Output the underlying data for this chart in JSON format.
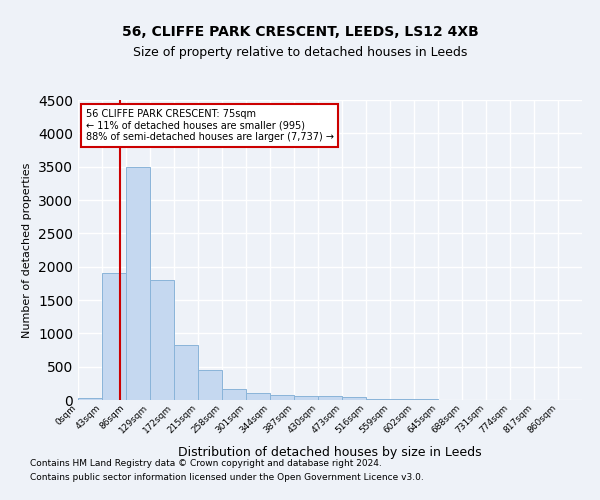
{
  "title1": "56, CLIFFE PARK CRESCENT, LEEDS, LS12 4XB",
  "title2": "Size of property relative to detached houses in Leeds",
  "xlabel": "Distribution of detached houses by size in Leeds",
  "ylabel": "Number of detached properties",
  "bin_labels": [
    "0sqm",
    "43sqm",
    "86sqm",
    "129sqm",
    "172sqm",
    "215sqm",
    "258sqm",
    "301sqm",
    "344sqm",
    "387sqm",
    "430sqm",
    "473sqm",
    "516sqm",
    "559sqm",
    "602sqm",
    "645sqm",
    "688sqm",
    "731sqm",
    "774sqm",
    "817sqm",
    "860sqm"
  ],
  "bar_heights": [
    30,
    1900,
    3500,
    1800,
    830,
    450,
    160,
    100,
    75,
    60,
    55,
    50,
    20,
    10,
    8,
    5,
    4,
    3,
    2,
    1,
    1
  ],
  "bar_color": "#c5d8f0",
  "bar_edge_color": "#8ab4d9",
  "ylim": [
    0,
    4500
  ],
  "yticks": [
    0,
    500,
    1000,
    1500,
    2000,
    2500,
    3000,
    3500,
    4000,
    4500
  ],
  "property_line_x": 75,
  "annotation_line1": "56 CLIFFE PARK CRESCENT: 75sqm",
  "annotation_line2": "← 11% of detached houses are smaller (995)",
  "annotation_line3": "88% of semi-detached houses are larger (7,737) →",
  "vline_color": "#cc0000",
  "annotation_box_edge": "#cc0000",
  "footer1": "Contains HM Land Registry data © Crown copyright and database right 2024.",
  "footer2": "Contains public sector information licensed under the Open Government Licence v3.0.",
  "background_color": "#eef2f8",
  "grid_color": "#ffffff"
}
